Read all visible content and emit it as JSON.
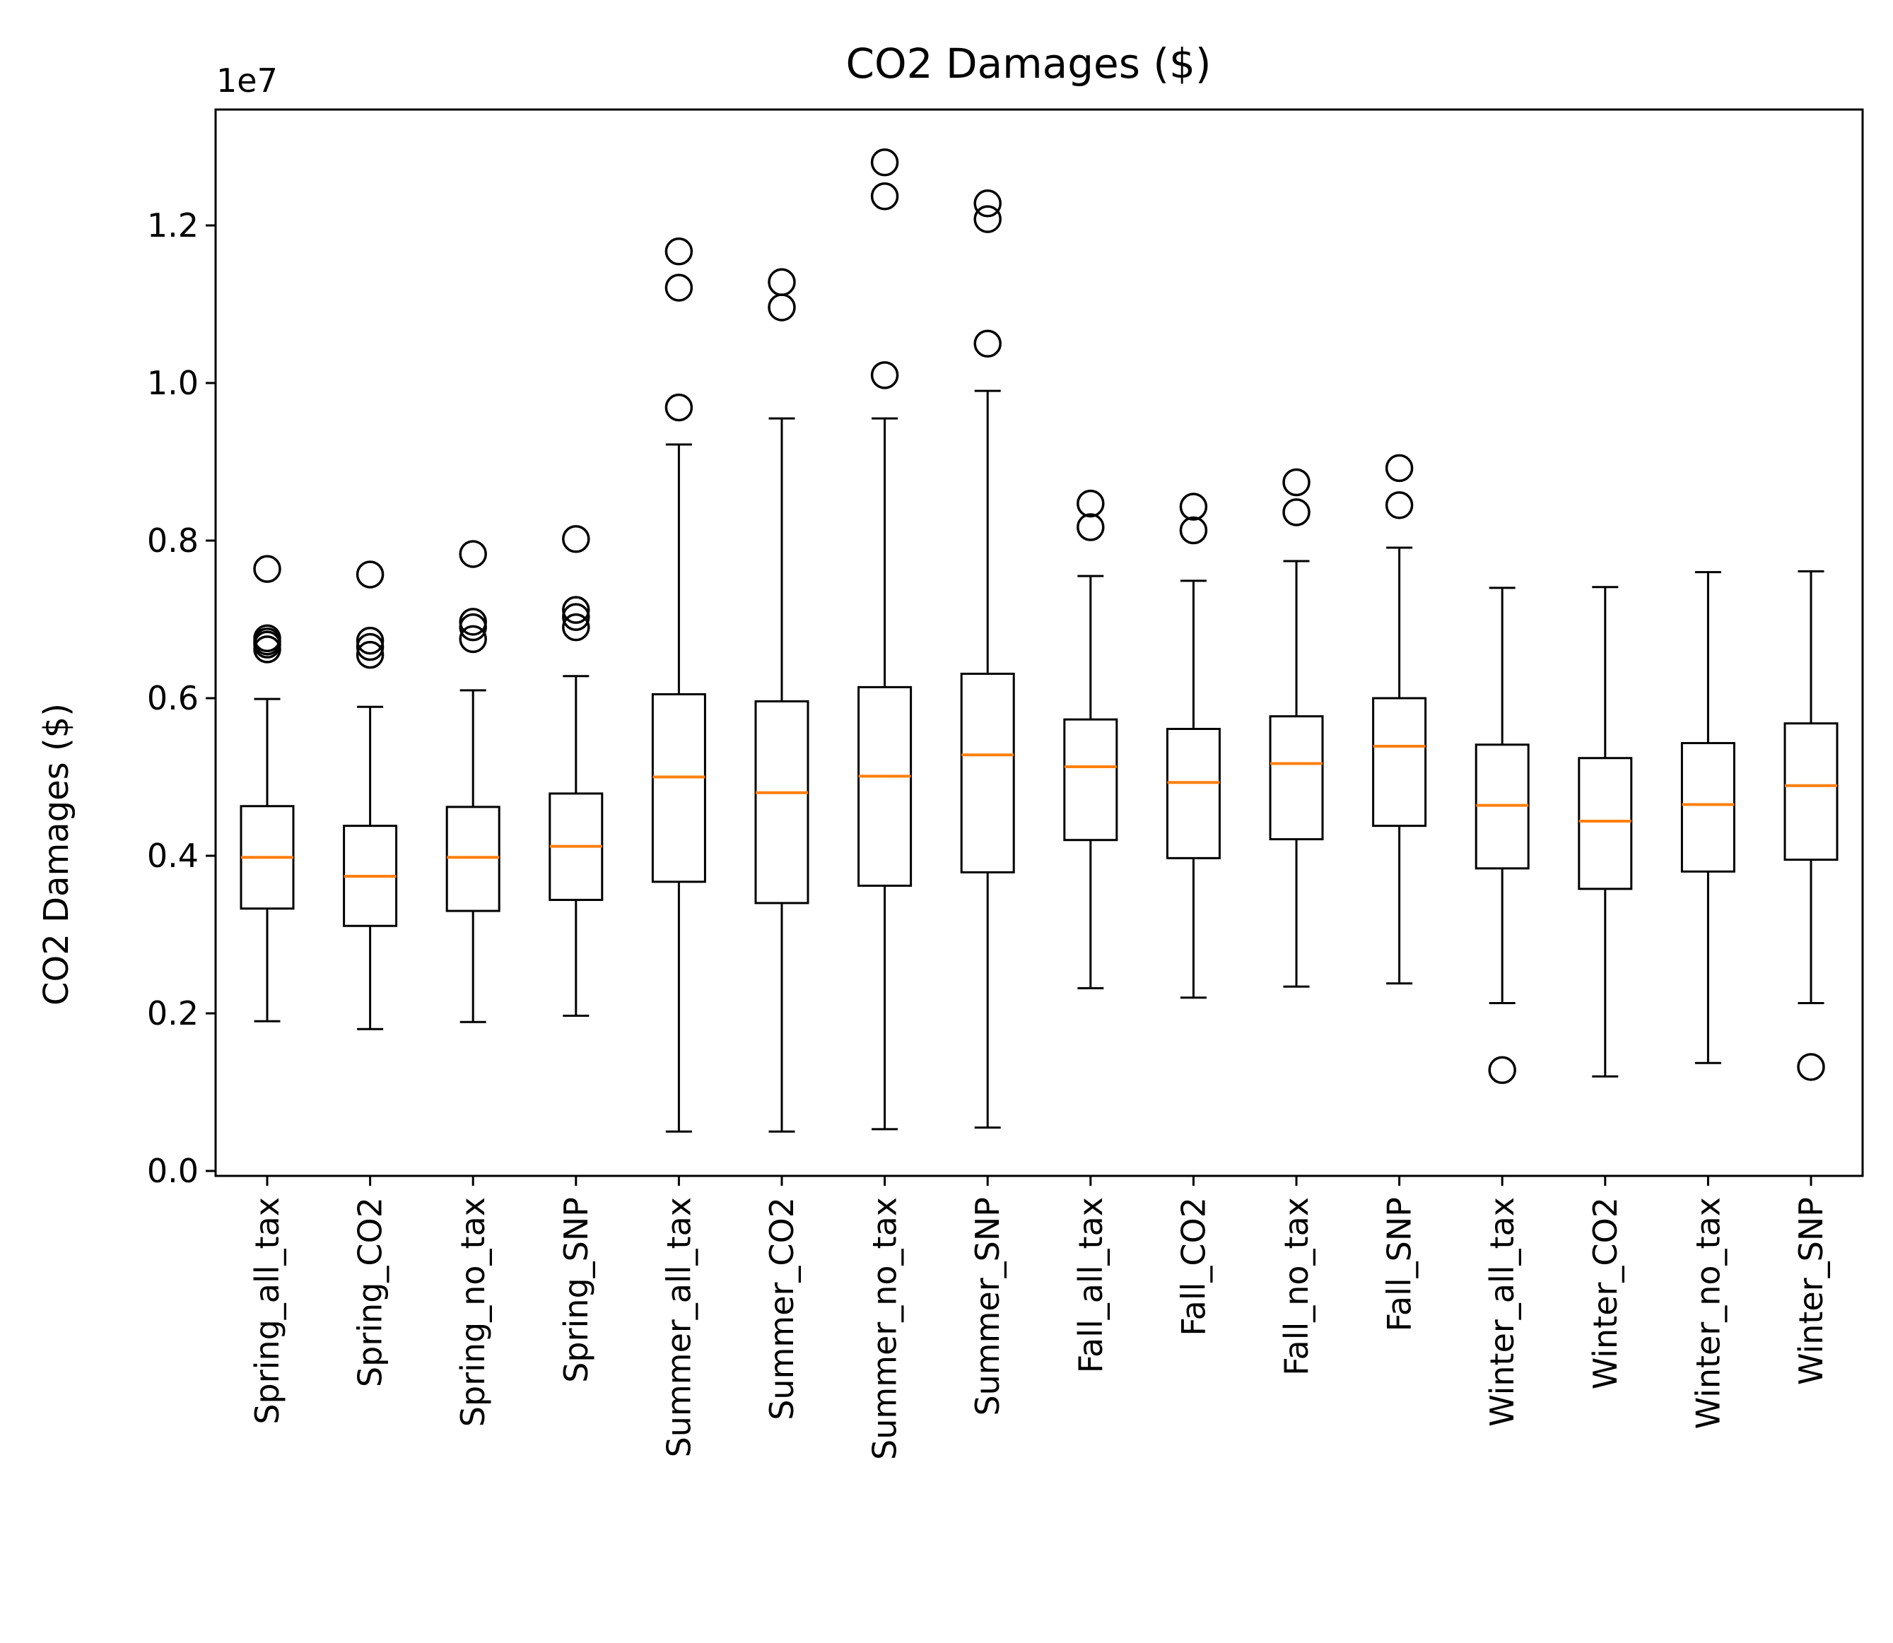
{
  "chart_data": {
    "type": "boxplot",
    "title": "CO2 Damages ($)",
    "xlabel": "",
    "ylabel": "CO2 Damages ($)",
    "y_offset_label": "1e7",
    "y_scale": 10000000,
    "ylim": [
      -0.0,
      1.35
    ],
    "yticks": [
      0.0,
      0.2,
      0.4,
      0.6,
      0.8,
      1.0,
      1.2
    ],
    "ytick_labels": [
      "0.0",
      "0.2",
      "0.4",
      "0.6",
      "0.8",
      "1.0",
      "1.2"
    ],
    "grid": false,
    "colors": {
      "box": "#000000",
      "median": "#ff7f0e",
      "frame": "#000000"
    },
    "categories": [
      "Spring_all_tax",
      "Spring_CO2",
      "Spring_no_tax",
      "Spring_SNP",
      "Summer_all_tax",
      "Summer_CO2",
      "Summer_no_tax",
      "Summer_SNP",
      "Fall_all_tax",
      "Fall_CO2",
      "Fall_no_tax",
      "Fall_SNP",
      "Winter_all_tax",
      "Winter_CO2",
      "Winter_no_tax",
      "Winter_SNP"
    ],
    "boxes": [
      {
        "whisker_low": 0.19,
        "q1": 0.333,
        "median": 0.398,
        "q3": 0.463,
        "whisker_high": 0.599,
        "outliers": [
          0.662,
          0.668,
          0.672,
          0.676,
          0.764
        ]
      },
      {
        "whisker_low": 0.18,
        "q1": 0.311,
        "median": 0.374,
        "q3": 0.438,
        "whisker_high": 0.589,
        "outliers": [
          0.655,
          0.665,
          0.673,
          0.757
        ]
      },
      {
        "whisker_low": 0.189,
        "q1": 0.33,
        "median": 0.398,
        "q3": 0.462,
        "whisker_high": 0.61,
        "outliers": [
          0.675,
          0.69,
          0.697,
          0.783
        ]
      },
      {
        "whisker_low": 0.197,
        "q1": 0.344,
        "median": 0.412,
        "q3": 0.479,
        "whisker_high": 0.628,
        "outliers": [
          0.69,
          0.703,
          0.712,
          0.802
        ]
      },
      {
        "whisker_low": 0.05,
        "q1": 0.367,
        "median": 0.5,
        "q3": 0.605,
        "whisker_high": 0.922,
        "outliers": [
          0.969,
          1.121,
          1.167
        ]
      },
      {
        "whisker_low": 0.05,
        "q1": 0.34,
        "median": 0.48,
        "q3": 0.596,
        "whisker_high": 0.955,
        "outliers": [
          1.096,
          1.128
        ]
      },
      {
        "whisker_low": 0.053,
        "q1": 0.362,
        "median": 0.501,
        "q3": 0.614,
        "whisker_high": 0.955,
        "outliers": [
          1.01,
          1.237,
          1.28
        ]
      },
      {
        "whisker_low": 0.055,
        "q1": 0.379,
        "median": 0.528,
        "q3": 0.631,
        "whisker_high": 0.99,
        "outliers": [
          1.05,
          1.208,
          1.228
        ]
      },
      {
        "whisker_low": 0.232,
        "q1": 0.42,
        "median": 0.513,
        "q3": 0.573,
        "whisker_high": 0.755,
        "outliers": [
          0.817,
          0.847
        ]
      },
      {
        "whisker_low": 0.22,
        "q1": 0.397,
        "median": 0.493,
        "q3": 0.561,
        "whisker_high": 0.749,
        "outliers": [
          0.813,
          0.843
        ]
      },
      {
        "whisker_low": 0.234,
        "q1": 0.421,
        "median": 0.517,
        "q3": 0.577,
        "whisker_high": 0.774,
        "outliers": [
          0.836,
          0.874
        ]
      },
      {
        "whisker_low": 0.238,
        "q1": 0.438,
        "median": 0.539,
        "q3": 0.6,
        "whisker_high": 0.791,
        "outliers": [
          0.845,
          0.892
        ]
      },
      {
        "whisker_low": 0.213,
        "q1": 0.384,
        "median": 0.464,
        "q3": 0.541,
        "whisker_high": 0.74,
        "outliers": [
          0.128
        ]
      },
      {
        "whisker_low": 0.12,
        "q1": 0.358,
        "median": 0.444,
        "q3": 0.524,
        "whisker_high": 0.741,
        "outliers": []
      },
      {
        "whisker_low": 0.137,
        "q1": 0.38,
        "median": 0.465,
        "q3": 0.543,
        "whisker_high": 0.76,
        "outliers": []
      },
      {
        "whisker_low": 0.213,
        "q1": 0.395,
        "median": 0.489,
        "q3": 0.568,
        "whisker_high": 0.761,
        "outliers": [
          0.132
        ]
      }
    ]
  }
}
